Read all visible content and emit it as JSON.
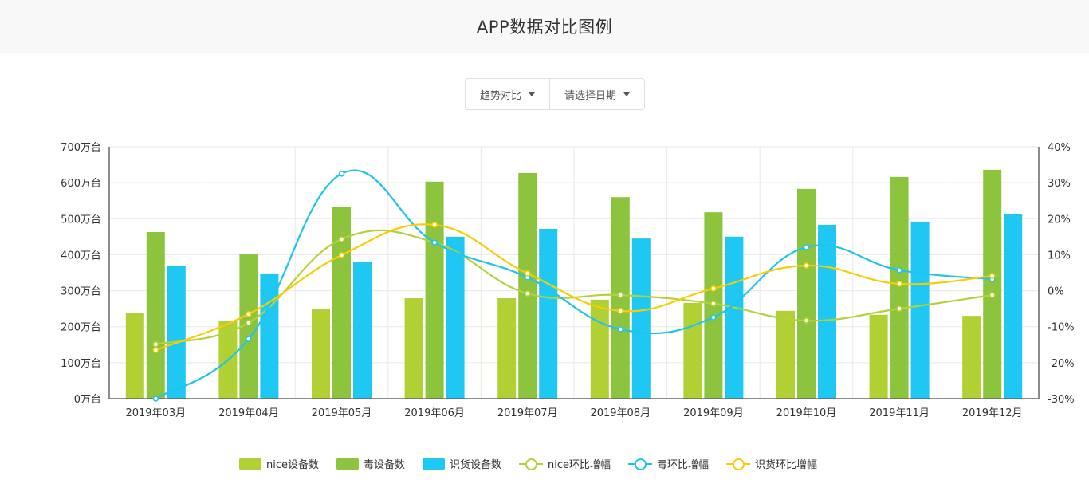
{
  "header": {
    "title": "APP数据对比图例"
  },
  "controls": [
    {
      "label": "趋势对比",
      "icon": "caret-down-icon"
    },
    {
      "label": "请选择日期",
      "icon": "caret-down-icon"
    }
  ],
  "colors": {
    "nice_bar": "#b1d033",
    "du_bar": "#8dc43e",
    "shihuo_bar": "#1fc8f2",
    "nice_line": "#b5d13a",
    "du_line": "#1ec4eb",
    "shihuo_line": "#f9cd03",
    "grid": "#e8e8e8",
    "axis": "#666666"
  },
  "legend": [
    {
      "label": "nice设备数",
      "type": "bar",
      "color": "#b1d033"
    },
    {
      "label": "毒设备数",
      "type": "bar",
      "color": "#8dc43e"
    },
    {
      "label": "识货设备数",
      "type": "bar",
      "color": "#1fc8f2"
    },
    {
      "label": "nice环比增幅",
      "type": "line",
      "color": "#b5d13a"
    },
    {
      "label": "毒环比增幅",
      "type": "line",
      "color": "#1ec4eb"
    },
    {
      "label": "识货环比增幅",
      "type": "line",
      "color": "#f9cd03"
    }
  ],
  "chart_data": {
    "type": "bar",
    "title": "APP数据对比图例",
    "categories": [
      "2019年03月",
      "2019年04月",
      "2019年05月",
      "2019年06月",
      "2019年07月",
      "2019年08月",
      "2019年09月",
      "2019年10月",
      "2019年11月",
      "2019年12月"
    ],
    "y_left": {
      "unit": "万台",
      "min": 0,
      "max": 700,
      "step": 100,
      "ticks": [
        "0万台",
        "100万台",
        "200万台",
        "300万台",
        "400万台",
        "500万台",
        "600万台",
        "700万台"
      ]
    },
    "y_right": {
      "unit": "%",
      "min": -30,
      "max": 40,
      "step": 10,
      "ticks": [
        "-30%",
        "-20%",
        "-10%",
        "0%",
        "10%",
        "20%",
        "30%",
        "40%"
      ]
    },
    "grid": true,
    "legend_position": "bottom",
    "series": [
      {
        "name": "nice设备数",
        "type": "bar",
        "axis": "left",
        "values": [
          237,
          217,
          248,
          279,
          279,
          275,
          266,
          244,
          233,
          230
        ]
      },
      {
        "name": "毒设备数",
        "type": "bar",
        "axis": "left",
        "values": [
          463,
          401,
          532,
          603,
          627,
          560,
          518,
          583,
          616,
          636
        ]
      },
      {
        "name": "识货设备数",
        "type": "bar",
        "axis": "left",
        "values": [
          370,
          348,
          381,
          450,
          472,
          445,
          450,
          483,
          492,
          512
        ]
      },
      {
        "name": "nice环比增幅",
        "type": "line",
        "axis": "right",
        "smooth": true,
        "values": [
          -14.9,
          -8.9,
          14.3,
          13.4,
          -0.8,
          -1.2,
          -3.6,
          -8.3,
          -5.0,
          -1.2
        ]
      },
      {
        "name": "毒环比增幅",
        "type": "line",
        "axis": "right",
        "smooth": true,
        "values": [
          -30.0,
          -13.4,
          32.5,
          13.4,
          3.7,
          -10.7,
          -7.4,
          12.1,
          5.7,
          3.2
        ]
      },
      {
        "name": "识货环比增幅",
        "type": "line",
        "axis": "right",
        "smooth": true,
        "values": [
          -16.5,
          -6.5,
          9.9,
          18.3,
          4.8,
          -5.6,
          0.6,
          7.0,
          1.9,
          4.1
        ]
      }
    ]
  }
}
